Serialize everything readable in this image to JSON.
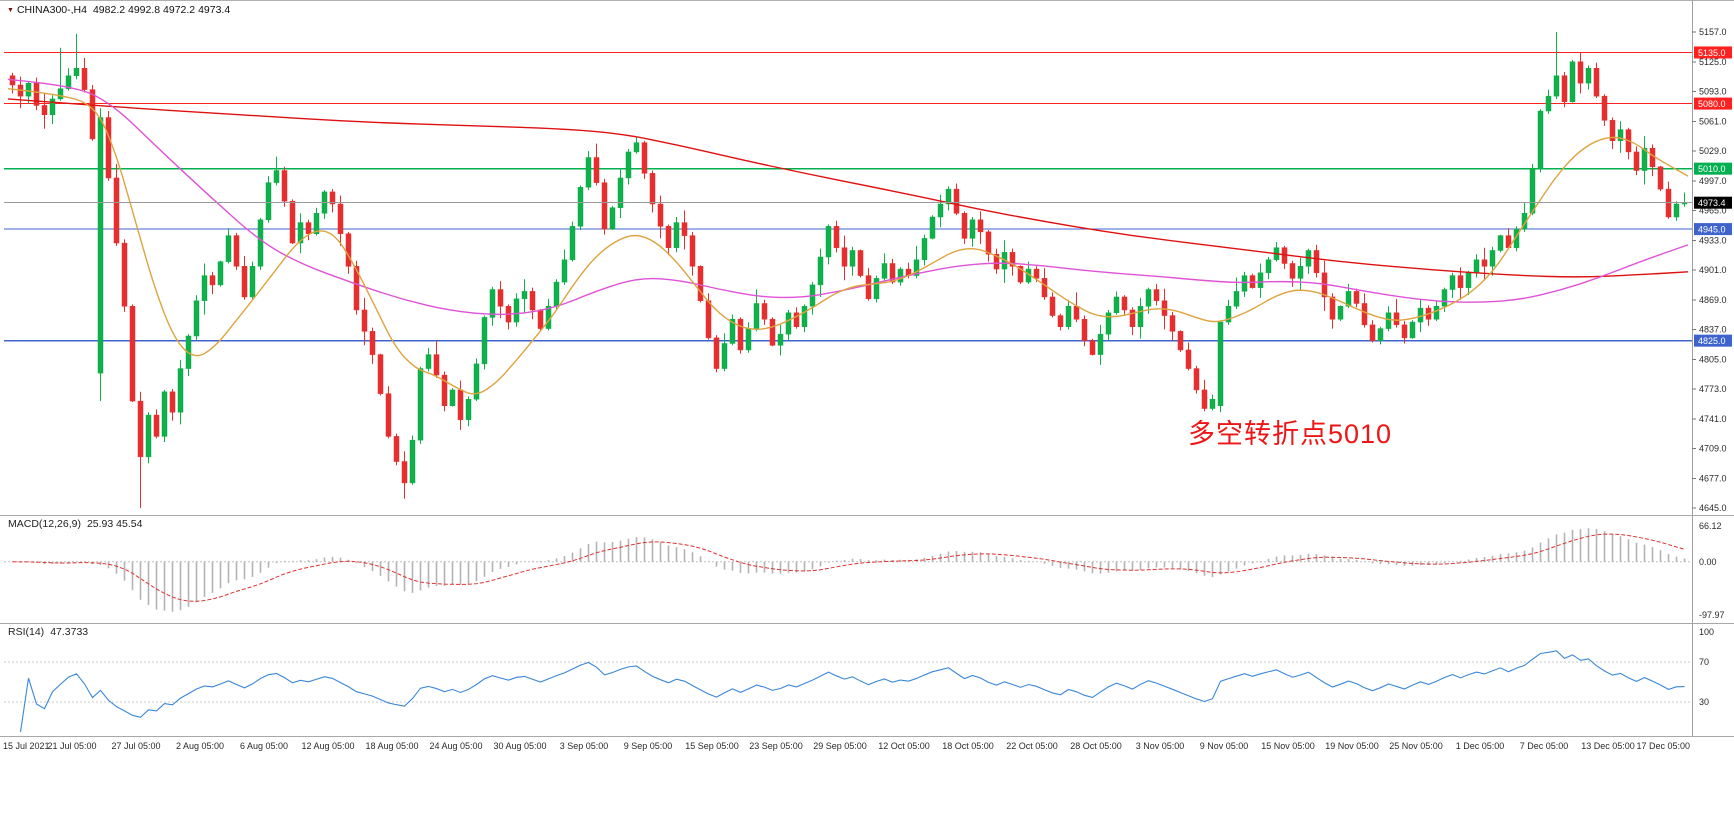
{
  "icons": {
    "symbol_dropdown": "▼"
  },
  "chart_data": {
    "type": "candlestick",
    "symbol": "CHINA300-",
    "timeframe": "H4",
    "header": {
      "title": "CHINA300-,H4",
      "values": "4982.2 4992.8 4972.2 4973.4"
    },
    "ohlc_display": {
      "open": "4982.2",
      "high": "4992.8",
      "low": "4972.2",
      "close": "4973.4"
    },
    "price_axis": {
      "min": 4645.0,
      "max": 5157.0,
      "step": 32.0,
      "ticks": [
        "5157.0",
        "5125.0",
        "5093.0",
        "5061.0",
        "5029.0",
        "4997.0",
        "4965.0",
        "4933.0",
        "4901.0",
        "4869.0",
        "4837.0",
        "4805.0",
        "4773.0",
        "4741.0",
        "4709.0",
        "4677.0",
        "4645.0"
      ]
    },
    "x_labels": [
      "15 Jul 2021",
      "21 Jul 05:00",
      "27 Jul 05:00",
      "2 Aug 05:00",
      "6 Aug 05:00",
      "12 Aug 05:00",
      "18 Aug 05:00",
      "24 Aug 05:00",
      "30 Aug 05:00",
      "3 Sep 05:00",
      "9 Sep 05:00",
      "15 Sep 05:00",
      "23 Sep 05:00",
      "29 Sep 05:00",
      "12 Oct 05:00",
      "18 Oct 05:00",
      "22 Oct 05:00",
      "28 Oct 05:00",
      "3 Nov 05:00",
      "9 Nov 05:00",
      "15 Nov 05:00",
      "19 Nov 05:00",
      "25 Nov 05:00",
      "1 Dec 05:00",
      "7 Dec 05:00",
      "13 Dec 05:00",
      "17 Dec 05:00"
    ],
    "first_open": 5110,
    "closes": [
      5100,
      5088,
      5102,
      5078,
      5068,
      5085,
      5096,
      5110,
      5118,
      5095,
      5042,
      5065,
      5000,
      4930,
      4862,
      4760,
      4700,
      4745,
      4722,
      4770,
      4748,
      4795,
      4830,
      4868,
      4895,
      4885,
      4910,
      4938,
      4905,
      4872,
      4905,
      4955,
      4995,
      5008,
      4975,
      4930,
      4952,
      4940,
      4962,
      4985,
      4972,
      4940,
      4905,
      4858,
      4835,
      4810,
      4768,
      4722,
      4695,
      4672,
      4718,
      4795,
      4810,
      4788,
      4755,
      4772,
      4740,
      4762,
      4800,
      4850,
      4880,
      4862,
      4845,
      4870,
      4878,
      4858,
      4838,
      4862,
      4888,
      4912,
      4948,
      4990,
      5022,
      4995,
      4945,
      4968,
      5000,
      5028,
      5038,
      5005,
      4972,
      4948,
      4925,
      4952,
      4938,
      4905,
      4868,
      4828,
      4795,
      4822,
      4848,
      4815,
      4838,
      4865,
      4848,
      4820,
      4832,
      4855,
      4840,
      4862,
      4885,
      4915,
      4948,
      4925,
      4905,
      4922,
      4895,
      4870,
      4892,
      4908,
      4888,
      4902,
      4895,
      4912,
      4935,
      4958,
      4972,
      4988,
      4962,
      4935,
      4955,
      4942,
      4918,
      4902,
      4920,
      4905,
      4888,
      4902,
      4892,
      4872,
      4852,
      4840,
      4862,
      4848,
      4825,
      4810,
      4832,
      4855,
      4872,
      4858,
      4840,
      4862,
      4880,
      4868,
      4852,
      4835,
      4815,
      4795,
      4772,
      4752,
      4762,
      4845,
      4862,
      4878,
      4895,
      4882,
      4898,
      4912,
      4925,
      4908,
      4892,
      4905,
      4922,
      4898,
      4872,
      4848,
      4862,
      4878,
      4865,
      4842,
      4825,
      4838,
      4855,
      4842,
      4828,
      4845,
      4860,
      4848,
      4862,
      4880,
      4895,
      4882,
      4898,
      4912,
      4905,
      4922,
      4938,
      4925,
      4945,
      4962,
      5010,
      5072,
      5088,
      5110,
      5082,
      5125,
      5102,
      5118,
      5088,
      5062,
      5040,
      5052,
      5028,
      5008,
      5032,
      5012,
      4988,
      4958,
      4972,
      4973.4
    ],
    "wick_pattern": [
      3,
      9,
      2,
      6,
      13,
      4,
      1,
      8,
      3,
      11,
      5,
      2,
      7,
      15,
      4,
      2,
      10,
      3,
      6,
      2
    ],
    "overrides": {
      "open": {
        "11": 4790,
        "151": 4755
      },
      "high": {
        "6": 5140,
        "8": 5155,
        "11": 5075,
        "193": 5157
      },
      "low": {
        "11": 4760,
        "16": 4645,
        "49": 4655,
        "151": 4748
      }
    },
    "levels": [
      {
        "price": 5135.0,
        "label": "5135.0",
        "color": "#ff2020",
        "type": "resistance"
      },
      {
        "price": 5080.0,
        "label": "5080.0",
        "color": "#ff2020",
        "type": "resistance"
      },
      {
        "price": 5010.0,
        "label": "5010.0",
        "color": "#00b050",
        "type": "pivot"
      },
      {
        "price": 4945.0,
        "label": "4945.0",
        "color": "#3f63cc",
        "type": "support"
      },
      {
        "price": 4825.0,
        "label": "4825.0",
        "color": "#3f63cc",
        "type": "support"
      }
    ],
    "current_price": {
      "value": 4973.4,
      "label": "4973.4",
      "line_color": "#9a9a9a",
      "badge_color": "#000000"
    },
    "candle_colors": {
      "up": "#0faf4a",
      "down": "#e62e2e"
    },
    "moving_averages": [
      {
        "name": "ma-slow",
        "color": "#e01010",
        "points": [
          [
            8,
            5085
          ],
          [
            120,
            5076
          ],
          [
            240,
            5068
          ],
          [
            360,
            5060
          ],
          [
            480,
            5056
          ],
          [
            560,
            5053
          ],
          [
            620,
            5048
          ],
          [
            680,
            5035
          ],
          [
            740,
            5020
          ],
          [
            800,
            5006
          ],
          [
            860,
            4993
          ],
          [
            920,
            4980
          ],
          [
            980,
            4966
          ],
          [
            1040,
            4954
          ],
          [
            1100,
            4943
          ],
          [
            1160,
            4934
          ],
          [
            1220,
            4926
          ],
          [
            1280,
            4918
          ],
          [
            1340,
            4910
          ],
          [
            1400,
            4904
          ],
          [
            1460,
            4899
          ],
          [
            1520,
            4895
          ],
          [
            1580,
            4893
          ],
          [
            1640,
            4896
          ],
          [
            1688,
            4899
          ]
        ]
      },
      {
        "name": "ma-medium",
        "color": "#e052d8",
        "points": [
          [
            8,
            5106
          ],
          [
            70,
            5100
          ],
          [
            110,
            5082
          ],
          [
            160,
            5030
          ],
          [
            210,
            4980
          ],
          [
            260,
            4932
          ],
          [
            300,
            4908
          ],
          [
            350,
            4888
          ],
          [
            400,
            4870
          ],
          [
            450,
            4857
          ],
          [
            500,
            4852
          ],
          [
            550,
            4858
          ],
          [
            600,
            4880
          ],
          [
            640,
            4893
          ],
          [
            680,
            4890
          ],
          [
            720,
            4880
          ],
          [
            760,
            4872
          ],
          [
            800,
            4871
          ],
          [
            840,
            4878
          ],
          [
            880,
            4888
          ],
          [
            920,
            4898
          ],
          [
            960,
            4906
          ],
          [
            1000,
            4909
          ],
          [
            1040,
            4906
          ],
          [
            1080,
            4901
          ],
          [
            1120,
            4897
          ],
          [
            1160,
            4894
          ],
          [
            1200,
            4890
          ],
          [
            1240,
            4887
          ],
          [
            1280,
            4889
          ],
          [
            1320,
            4887
          ],
          [
            1360,
            4879
          ],
          [
            1400,
            4872
          ],
          [
            1440,
            4867
          ],
          [
            1480,
            4866
          ],
          [
            1520,
            4869
          ],
          [
            1560,
            4879
          ],
          [
            1600,
            4893
          ],
          [
            1640,
            4910
          ],
          [
            1688,
            4928
          ]
        ]
      },
      {
        "name": "ma-fast",
        "color": "#dda43e",
        "points": [
          [
            8,
            5096
          ],
          [
            60,
            5090
          ],
          [
            95,
            5078
          ],
          [
            115,
            5030
          ],
          [
            135,
            4955
          ],
          [
            155,
            4880
          ],
          [
            175,
            4825
          ],
          [
            195,
            4805
          ],
          [
            215,
            4818
          ],
          [
            235,
            4845
          ],
          [
            255,
            4872
          ],
          [
            275,
            4900
          ],
          [
            295,
            4928
          ],
          [
            315,
            4945
          ],
          [
            335,
            4940
          ],
          [
            355,
            4905
          ],
          [
            375,
            4862
          ],
          [
            395,
            4818
          ],
          [
            415,
            4795
          ],
          [
            435,
            4788
          ],
          [
            455,
            4775
          ],
          [
            475,
            4765
          ],
          [
            495,
            4778
          ],
          [
            515,
            4802
          ],
          [
            535,
            4828
          ],
          [
            555,
            4855
          ],
          [
            575,
            4888
          ],
          [
            595,
            4915
          ],
          [
            615,
            4932
          ],
          [
            635,
            4940
          ],
          [
            655,
            4932
          ],
          [
            675,
            4912
          ],
          [
            695,
            4885
          ],
          [
            715,
            4858
          ],
          [
            735,
            4842
          ],
          [
            755,
            4836
          ],
          [
            775,
            4840
          ],
          [
            795,
            4850
          ],
          [
            815,
            4862
          ],
          [
            835,
            4876
          ],
          [
            855,
            4884
          ],
          [
            875,
            4886
          ],
          [
            895,
            4889
          ],
          [
            915,
            4898
          ],
          [
            935,
            4910
          ],
          [
            955,
            4922
          ],
          [
            975,
            4925
          ],
          [
            995,
            4917
          ],
          [
            1015,
            4906
          ],
          [
            1035,
            4892
          ],
          [
            1055,
            4877
          ],
          [
            1075,
            4863
          ],
          [
            1095,
            4852
          ],
          [
            1115,
            4850
          ],
          [
            1135,
            4855
          ],
          [
            1155,
            4860
          ],
          [
            1175,
            4858
          ],
          [
            1195,
            4850
          ],
          [
            1215,
            4844
          ],
          [
            1235,
            4850
          ],
          [
            1255,
            4860
          ],
          [
            1275,
            4873
          ],
          [
            1295,
            4880
          ],
          [
            1315,
            4878
          ],
          [
            1335,
            4870
          ],
          [
            1355,
            4860
          ],
          [
            1375,
            4851
          ],
          [
            1395,
            4846
          ],
          [
            1415,
            4849
          ],
          [
            1435,
            4856
          ],
          [
            1455,
            4866
          ],
          [
            1475,
            4880
          ],
          [
            1495,
            4902
          ],
          [
            1515,
            4935
          ],
          [
            1535,
            4968
          ],
          [
            1555,
            5000
          ],
          [
            1575,
            5025
          ],
          [
            1595,
            5040
          ],
          [
            1615,
            5045
          ],
          [
            1635,
            5038
          ],
          [
            1655,
            5022
          ],
          [
            1688,
            5002
          ]
        ]
      }
    ],
    "macd": {
      "name": "MACD(12,26,9)",
      "values": "25.93 45.54",
      "params": [
        12,
        26,
        9
      ],
      "range": [
        -97.97,
        66.12
      ],
      "axis_labels": [
        "66.12",
        "0.00",
        "-97.97"
      ],
      "histogram_color": "#b4b4b4",
      "signal_color": "#e03030"
    },
    "rsi": {
      "name": "RSI(14)",
      "value": "47.3733",
      "period": 14,
      "range": [
        0,
        100
      ],
      "axis_labels": [
        "100",
        "70",
        "30"
      ],
      "levels": [
        70,
        30
      ],
      "color": "#3a87d8"
    },
    "annotation": {
      "text": "多空转折点5010",
      "color": "#ed1515"
    }
  }
}
